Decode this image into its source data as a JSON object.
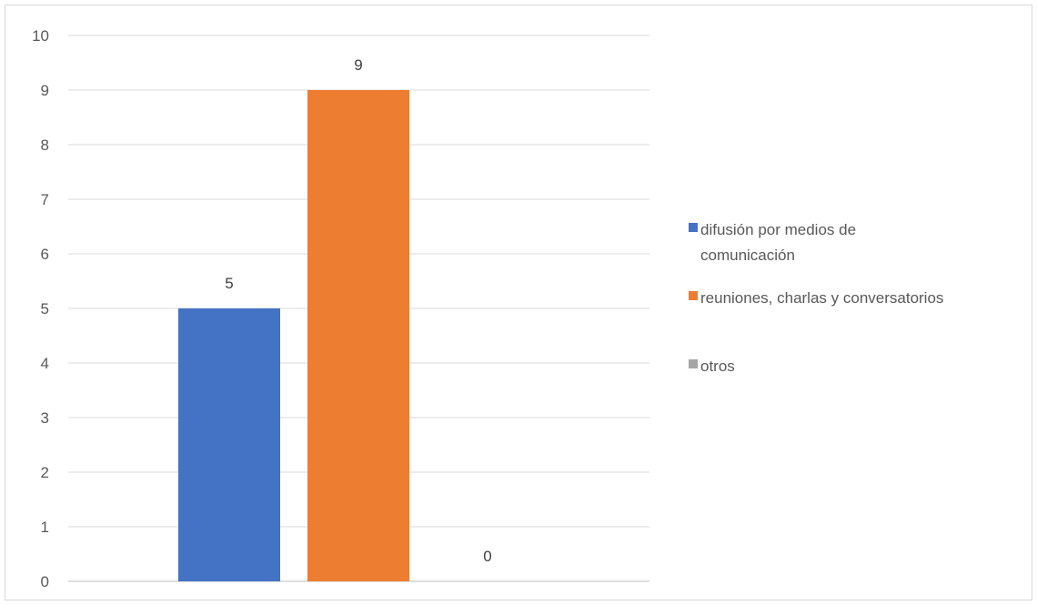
{
  "chart_data": {
    "type": "bar",
    "title": "",
    "xlabel": "",
    "ylabel": "",
    "ylim": [
      0,
      10
    ],
    "yticks": [
      0,
      1,
      2,
      3,
      4,
      5,
      6,
      7,
      8,
      9,
      10
    ],
    "grid": true,
    "legend_position": "right",
    "series": [
      {
        "name": "difusión por medios de comunicación",
        "legend_lines": [
          "difusión por medios de",
          "comunicación"
        ],
        "value": 5,
        "color": "#4472c4"
      },
      {
        "name": "reuniones, charlas y conversatorios",
        "legend_lines": [
          "reuniones, charlas y conversatorios"
        ],
        "value": 9,
        "color": "#ed7d31"
      },
      {
        "name": "otros",
        "legend_lines": [
          "otros"
        ],
        "value": 0,
        "color": "#a5a5a5"
      }
    ]
  }
}
